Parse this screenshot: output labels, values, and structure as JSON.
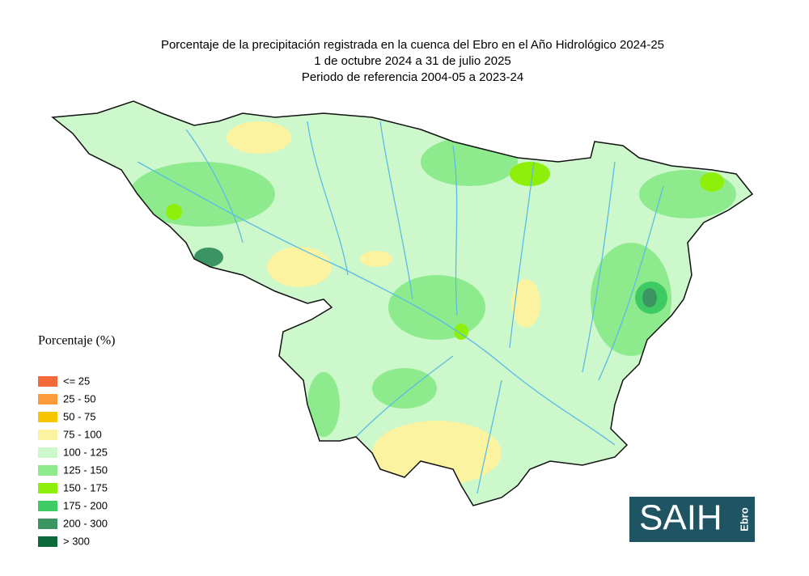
{
  "title": [
    "Porcentaje de la precipitación registrada en la cuenca del Ebro en el Año Hidrológico 2024-25",
    "1 de octubre 2024 a 31 de julio 2025",
    "Periodo de referencia 2004-05 a 2023-24"
  ],
  "legend": {
    "title": "Porcentaje (%)",
    "items": [
      {
        "label": "<= 25",
        "color": "#f26a3a"
      },
      {
        "label": "25 - 50",
        "color": "#fd9a3c"
      },
      {
        "label": "50 - 75",
        "color": "#f7c600"
      },
      {
        "label": "75 - 100",
        "color": "#fbf3a0"
      },
      {
        "label": "100 - 125",
        "color": "#ccf8cc"
      },
      {
        "label": "125 - 150",
        "color": "#8deb8d"
      },
      {
        "label": "150 - 175",
        "color": "#8ef00a"
      },
      {
        "label": "175 - 200",
        "color": "#3ecb63"
      },
      {
        "label": "200 - 300",
        "color": "#3a9563"
      },
      {
        "label": "> 300",
        "color": "#0c6a3a"
      }
    ]
  },
  "logo": {
    "main": "SAIH",
    "sub": "Ebro"
  }
}
